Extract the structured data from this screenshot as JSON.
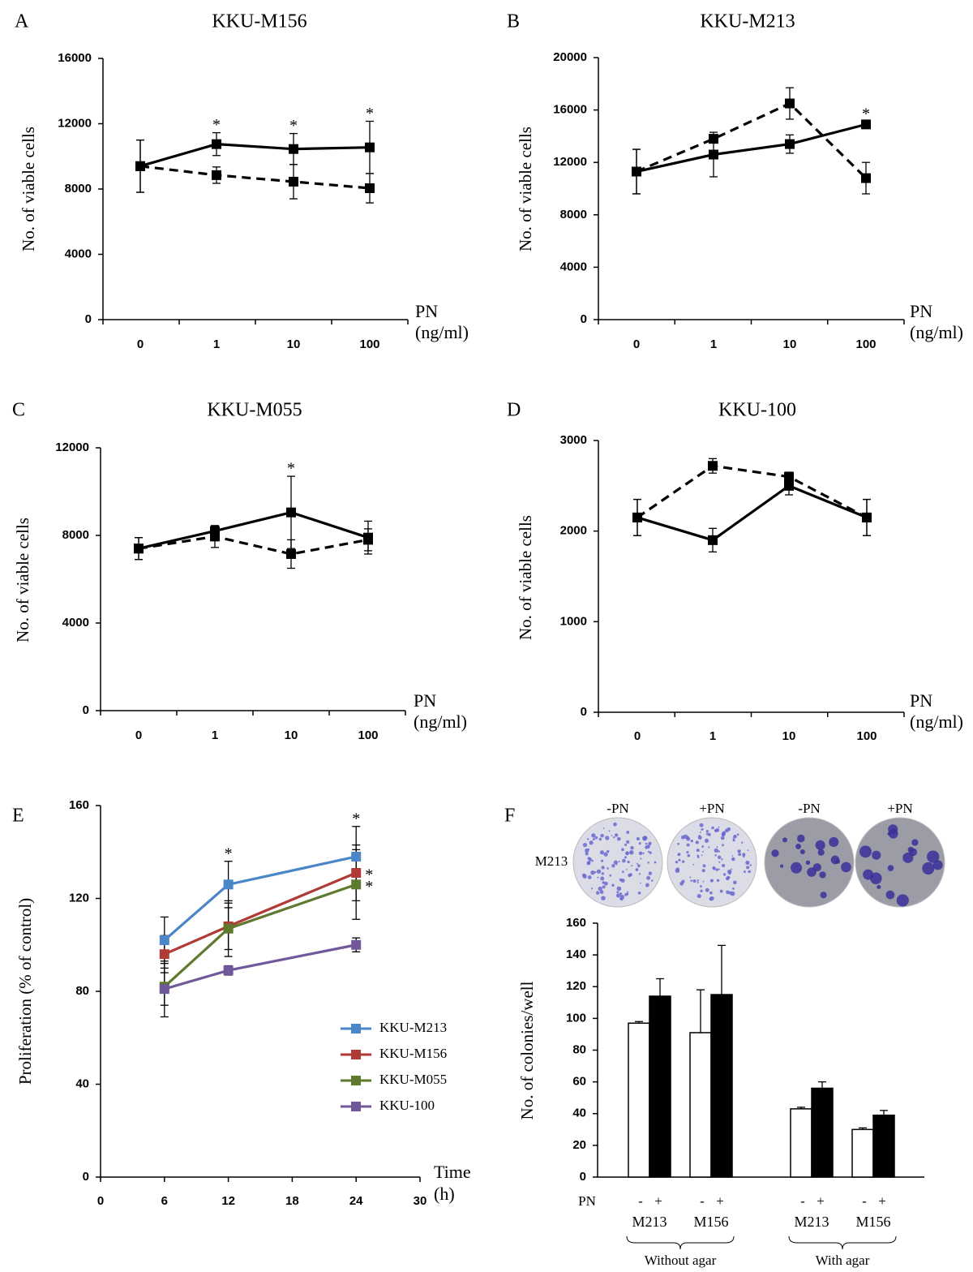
{
  "chart_data": [
    {
      "panel": "A",
      "type": "line",
      "title": "KKU-M156",
      "y_label": "No. of viable cells",
      "x_label": [
        "PN",
        "(ng/ml)"
      ],
      "categories": [
        "0",
        "1",
        "10",
        "100"
      ],
      "ylim": [
        0,
        16000
      ],
      "yticks": [
        0,
        4000,
        8000,
        12000,
        16000
      ],
      "series": [
        {
          "style": "solid",
          "color": "#000000",
          "values": [
            9400,
            10750,
            10450,
            10550
          ],
          "errors": [
            1600,
            700,
            950,
            1600
          ],
          "point_labels": [
            null,
            "*",
            "*",
            "*"
          ]
        },
        {
          "style": "dashed",
          "color": "#000000",
          "values": [
            9400,
            8850,
            8450,
            8050
          ],
          "errors": [
            1600,
            500,
            1050,
            900
          ]
        }
      ]
    },
    {
      "panel": "B",
      "type": "line",
      "title": "KKU-M213",
      "y_label": "No. of viable cells",
      "x_label": [
        "PN",
        "(ng/ml)"
      ],
      "categories": [
        "0",
        "1",
        "10",
        "100"
      ],
      "ylim": [
        0,
        20000
      ],
      "yticks": [
        0,
        4000,
        8000,
        12000,
        16000,
        20000
      ],
      "series": [
        {
          "style": "solid",
          "color": "#000000",
          "values": [
            11300,
            12600,
            13400,
            14900
          ],
          "errors": [
            1700,
            1700,
            700,
            200
          ],
          "point_labels": [
            null,
            null,
            null,
            "*"
          ]
        },
        {
          "style": "dashed",
          "color": "#000000",
          "values": [
            11300,
            13800,
            16500,
            10800
          ],
          "errors": [
            1700,
            200,
            1200,
            1200
          ]
        }
      ]
    },
    {
      "panel": "C",
      "type": "line",
      "title": "KKU-M055",
      "y_label": "No. of viable cells",
      "x_label": [
        "PN",
        "(ng/ml)"
      ],
      "categories": [
        "0",
        "1",
        "10",
        "100"
      ],
      "ylim": [
        0,
        12000
      ],
      "yticks": [
        0,
        4000,
        8000,
        12000
      ],
      "series": [
        {
          "style": "solid",
          "color": "#000000",
          "values": [
            7400,
            8200,
            9050,
            7900
          ],
          "errors": [
            500,
            200,
            1650,
            750
          ],
          "point_labels": [
            null,
            null,
            "*",
            null
          ]
        },
        {
          "style": "dashed",
          "color": "#000000",
          "values": [
            7400,
            7950,
            7150,
            7800
          ],
          "errors": [
            500,
            500,
            650,
            500
          ]
        }
      ]
    },
    {
      "panel": "D",
      "type": "line",
      "title": "KKU-100",
      "y_label": "No. of viable cells",
      "x_label": [
        "PN",
        "(ng/ml)"
      ],
      "categories": [
        "0",
        "1",
        "10",
        "100"
      ],
      "ylim": [
        0,
        3000
      ],
      "yticks": [
        0,
        1000,
        2000,
        3000
      ],
      "series": [
        {
          "style": "solid",
          "color": "#000000",
          "values": [
            2150,
            1900,
            2500,
            2150
          ],
          "errors": [
            200,
            130,
            100,
            200
          ]
        },
        {
          "style": "dashed",
          "color": "#000000",
          "values": [
            2150,
            2720,
            2600,
            2150
          ],
          "errors": [
            200,
            80,
            50,
            200
          ]
        }
      ]
    },
    {
      "panel": "E",
      "type": "line",
      "y_label": "Proliferation (% of control)",
      "x_label": [
        "Time",
        "(h)"
      ],
      "x": [
        6,
        12,
        24
      ],
      "xlim": [
        0,
        30
      ],
      "xticks": [
        0,
        6,
        12,
        18,
        24,
        30
      ],
      "ylim": [
        0,
        160
      ],
      "yticks": [
        0,
        40,
        80,
        120,
        160
      ],
      "series": [
        {
          "name": "KKU-M213",
          "style": "solid",
          "color": "#4a86c8",
          "values": [
            102,
            126,
            138
          ],
          "errors": [
            10,
            10,
            13
          ],
          "point_labels": [
            null,
            "*",
            "*"
          ]
        },
        {
          "name": "KKU-M156",
          "style": "solid",
          "color": "#b03a36",
          "values": [
            96,
            108,
            131
          ],
          "errors": [
            8,
            10,
            12
          ],
          "point_labels": [
            null,
            null,
            "*"
          ]
        },
        {
          "name": "KKU-M055",
          "style": "solid",
          "color": "#5f7a2e",
          "values": [
            82,
            107,
            126
          ],
          "errors": [
            8,
            12,
            15
          ],
          "point_labels": [
            null,
            null,
            "*"
          ]
        },
        {
          "name": "KKU-100",
          "style": "solid",
          "color": "#70589a",
          "values": [
            81,
            89,
            100
          ],
          "errors": [
            12,
            2,
            3
          ]
        }
      ]
    },
    {
      "panel": "F",
      "type": "bar",
      "y_label": "No. of colonies/well",
      "x_label": "PN",
      "images": {
        "row_label": "M213",
        "labels": [
          "-PN",
          "+PN",
          "-PN",
          "+PN"
        ]
      },
      "groups": [
        {
          "label": "Without agar",
          "categories": [
            "M213",
            "M156"
          ]
        },
        {
          "label": "With agar",
          "categories": [
            "M213",
            "M156"
          ]
        }
      ],
      "ylim": [
        0,
        160
      ],
      "yticks": [
        0,
        20,
        40,
        60,
        80,
        100,
        120,
        140,
        160
      ],
      "series": [
        {
          "name": "-",
          "color": "#ffffff",
          "values": [
            97,
            91,
            43,
            30
          ],
          "errors": [
            1,
            27,
            1,
            1
          ]
        },
        {
          "name": "+",
          "color": "#000000",
          "values": [
            114,
            115,
            56,
            39
          ],
          "errors": [
            11,
            31,
            4,
            3
          ]
        }
      ]
    }
  ]
}
